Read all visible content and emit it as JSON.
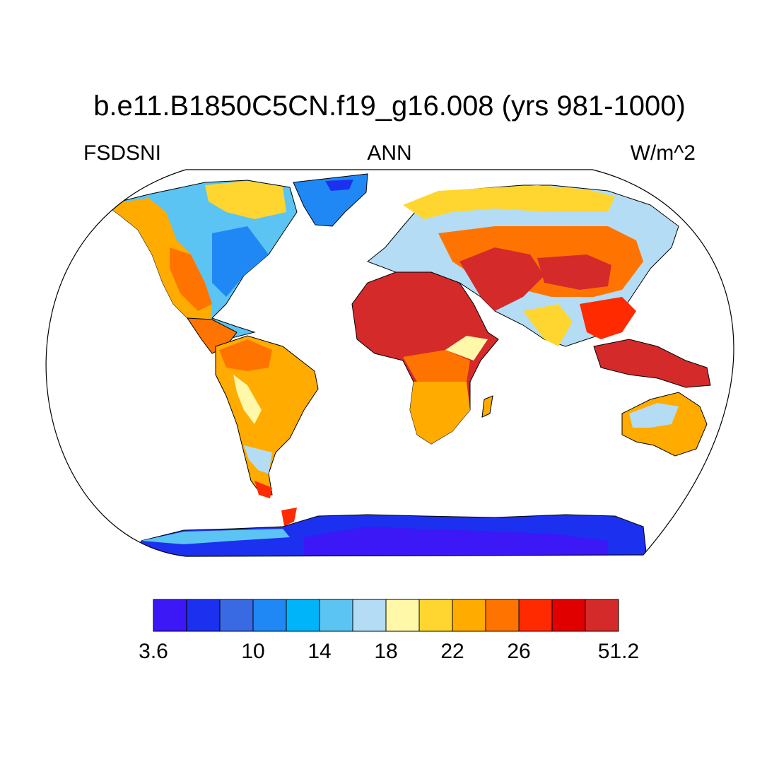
{
  "title": "b.e11.B1850C5CN.f19_g16.008 (yrs 981-1000)",
  "left_string": "FSDSNI",
  "center_string": "ANN",
  "right_string": "W/m^2",
  "colorbar": {
    "colors": [
      "#3b18f5",
      "#1c30f0",
      "#3a6ae3",
      "#2088f5",
      "#00b4f9",
      "#5cc4f2",
      "#b4dcf4",
      "#fff8a8",
      "#ffd630",
      "#ffab00",
      "#ff7400",
      "#ff2a00",
      "#e00000",
      "#d42a2a"
    ],
    "labels": [
      {
        "after_box": 0,
        "text": "3.6"
      },
      {
        "after_box": 3,
        "text": "10"
      },
      {
        "after_box": 5,
        "text": "14"
      },
      {
        "after_box": 7,
        "text": "18"
      },
      {
        "after_box": 9,
        "text": "22"
      },
      {
        "after_box": 11,
        "text": "26"
      },
      {
        "after_box": 14,
        "text": "51.2"
      }
    ]
  },
  "regions": [
    {
      "name": "north-africa-sahara",
      "level": 13
    },
    {
      "name": "arabia",
      "level": 13
    },
    {
      "name": "central-asia",
      "level": 13
    },
    {
      "name": "maritime-continent",
      "level": 12
    },
    {
      "name": "central-africa",
      "level": 11
    },
    {
      "name": "south-america",
      "level": 10
    },
    {
      "name": "southern-africa",
      "level": 9
    },
    {
      "name": "australia",
      "level": 9
    },
    {
      "name": "north-america-west",
      "level": 9
    },
    {
      "name": "eastern-north-america",
      "level": 4
    },
    {
      "name": "canada-arctic",
      "level": 5
    },
    {
      "name": "siberia",
      "level": 6
    },
    {
      "name": "greenland",
      "level": 2
    },
    {
      "name": "antarctica",
      "level": 1
    }
  ]
}
